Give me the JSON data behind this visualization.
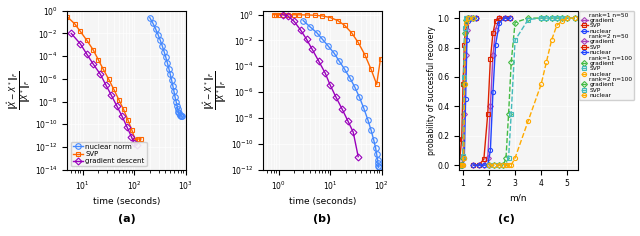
{
  "fig_width": 6.4,
  "fig_height": 2.36,
  "dpi": 100,
  "panel_a": {
    "xlabel": "time (seconds)",
    "ylabel": "$\\frac{\\|\\hat{X}-X^*\\|_F}{\\|X^*\\|_F}$",
    "label": "(a)",
    "xlim_log": [
      0.7,
      3.0
    ],
    "ylim": [
      1e-14,
      1
    ],
    "nuclear_color": "#4488FF",
    "svp_color": "#FF6600",
    "gradient_color": "#9900BB",
    "nuclear_x": [
      200,
      230,
      260,
      290,
      320,
      350,
      380,
      410,
      440,
      470,
      500,
      530,
      560,
      590,
      620,
      650,
      680,
      700,
      720,
      740,
      760,
      780,
      800,
      820,
      840
    ],
    "nuclear_y": [
      0.25,
      0.08,
      0.025,
      0.008,
      0.0025,
      0.0008,
      0.00025,
      8e-05,
      2.5e-05,
      8e-06,
      2.5e-06,
      8e-07,
      2.5e-07,
      8e-08,
      2.5e-08,
      1e-08,
      4e-09,
      2e-09,
      1.2e-09,
      9e-10,
      7e-10,
      6e-10,
      5.5e-10,
      5e-10,
      5e-10
    ],
    "svp_x": [
      5,
      7,
      9,
      12,
      16,
      20,
      25,
      32,
      40,
      50,
      62,
      75,
      90,
      105,
      120,
      135
    ],
    "svp_y": [
      0.3,
      0.07,
      0.015,
      0.0025,
      0.00035,
      5e-05,
      7e-06,
      9e-07,
      1.2e-07,
      1.5e-08,
      2e-09,
      2.5e-10,
      3e-11,
      4e-12,
      5e-12,
      5e-12
    ],
    "gradient_x": [
      6,
      9,
      12,
      16,
      22,
      28,
      36,
      46,
      58,
      72,
      88,
      100,
      112
    ],
    "gradient_y": [
      0.01,
      0.0012,
      0.00015,
      2e-05,
      2.5e-06,
      3e-07,
      3.5e-08,
      4e-09,
      5e-10,
      6e-11,
      8e-12,
      2e-12,
      1.5e-12
    ]
  },
  "panel_b": {
    "xlabel": "time (seconds)",
    "ylabel": "$\\frac{\\|\\hat{X}-X^*\\|_F}{\\|X^*\\|_F}$",
    "label": "(b)",
    "xlim_log": [
      -0.3,
      2.0
    ],
    "ylim": [
      1e-12,
      2
    ],
    "nuclear_color": "#4488FF",
    "svp_color": "#FF6600",
    "gradient_color": "#9900BB",
    "nuclear_x": [
      3,
      4,
      5.5,
      7,
      9,
      12,
      15,
      19,
      24,
      30,
      37,
      45,
      54,
      62,
      70,
      76,
      80,
      83,
      85,
      86,
      87
    ],
    "nuclear_y": [
      0.35,
      0.12,
      0.04,
      0.013,
      0.004,
      0.001,
      0.00025,
      6e-05,
      1.3e-05,
      2.5e-06,
      4e-07,
      5.5e-08,
      7e-09,
      1.2e-09,
      2e-10,
      5e-11,
      1.5e-11,
      6e-12,
      3e-12,
      2e-12,
      1.5e-12
    ],
    "svp_x": [
      0.8,
      0.9,
      1.0,
      1.2,
      1.5,
      2.0,
      2.5,
      3.5,
      5,
      7,
      10,
      14,
      19,
      26,
      35,
      47,
      62,
      80,
      95
    ],
    "svp_y": [
      1.0,
      1.0,
      1.0,
      1.0,
      0.99,
      0.98,
      0.97,
      0.95,
      0.9,
      0.8,
      0.6,
      0.35,
      0.15,
      0.04,
      0.007,
      0.0008,
      6e-05,
      4e-06,
      0.0004
    ],
    "gradient_x": [
      1.2,
      1.5,
      2.0,
      2.7,
      3.5,
      4.5,
      6,
      8,
      10,
      13,
      17,
      22,
      28,
      35
    ],
    "gradient_y": [
      1.0,
      0.8,
      0.3,
      0.06,
      0.012,
      0.002,
      0.00025,
      3e-05,
      3.5e-06,
      4e-07,
      5e-08,
      6e-09,
      8e-10,
      1e-11
    ]
  },
  "panel_c": {
    "xlabel": "m/n",
    "ylabel": "probability of successful recovery",
    "label": "(c)",
    "xlim": [
      0.85,
      5.4
    ],
    "ylim": [
      -0.03,
      1.05
    ],
    "rank1_n50_grad_color": "#AA44BB",
    "rank1_n50_svp_color": "#DD2200",
    "rank1_n50_nuc_color": "#2244FF",
    "rank2_n50_grad_color": "#AA44BB",
    "rank2_n50_svp_color": "#DD2200",
    "rank2_n50_nuc_color": "#2244FF",
    "rank1_n100_grad_color": "#44BB44",
    "rank1_n100_svp_color": "#44BBBB",
    "rank1_n100_nuc_color": "#FFAA00",
    "rank2_n100_grad_color": "#44BB44",
    "rank2_n100_svp_color": "#44BBBB",
    "rank2_n100_nuc_color": "#FFAA00",
    "rank1_n50_x": [
      0.85,
      0.95,
      1.0,
      1.05,
      1.1,
      1.15,
      1.2,
      1.3,
      1.5
    ],
    "rank1_n50_grad_y": [
      0.0,
      0.0,
      0.05,
      0.35,
      0.75,
      0.92,
      1.0,
      1.0,
      1.0
    ],
    "rank1_n50_svp_y": [
      0.0,
      0.18,
      0.55,
      0.82,
      0.95,
      1.0,
      1.0,
      1.0,
      1.0
    ],
    "rank1_n50_nuc_y": [
      0.0,
      0.0,
      0.0,
      0.05,
      0.45,
      0.85,
      0.98,
      1.0,
      1.0
    ],
    "rank2_n50_x": [
      1.4,
      1.6,
      1.8,
      1.95,
      2.05,
      2.15,
      2.25,
      2.4,
      2.6,
      2.8
    ],
    "rank2_n50_grad_y": [
      0.0,
      0.0,
      0.0,
      0.05,
      0.4,
      0.75,
      0.92,
      1.0,
      1.0,
      1.0
    ],
    "rank2_n50_svp_y": [
      0.0,
      0.0,
      0.04,
      0.35,
      0.72,
      0.9,
      0.98,
      1.0,
      1.0,
      1.0
    ],
    "rank2_n50_nuc_y": [
      0.0,
      0.0,
      0.0,
      0.0,
      0.1,
      0.5,
      0.82,
      0.97,
      1.0,
      1.0
    ],
    "rank1_n100_x": [
      0.85,
      0.92,
      0.97,
      1.0,
      1.03,
      1.06,
      1.1,
      1.2,
      1.4
    ],
    "rank1_n100_grad_y": [
      0.0,
      0.0,
      0.0,
      0.05,
      0.55,
      0.9,
      0.99,
      1.0,
      1.0
    ],
    "rank1_n100_svp_y": [
      0.0,
      0.0,
      0.0,
      0.06,
      0.6,
      0.93,
      1.0,
      1.0,
      1.0
    ],
    "rank1_n100_nuc_y": [
      0.0,
      0.0,
      0.0,
      0.0,
      0.05,
      0.55,
      0.97,
      1.0,
      1.0
    ],
    "rank2_n100_x": [
      2.0,
      2.2,
      2.4,
      2.55,
      2.65,
      2.75,
      2.85,
      3.0,
      3.5,
      4.0,
      4.2,
      4.4,
      4.6,
      4.8,
      5.0,
      5.3
    ],
    "rank2_n100_grad_y": [
      0.0,
      0.0,
      0.0,
      0.0,
      0.05,
      0.35,
      0.7,
      0.97,
      1.0,
      1.0,
      1.0,
      1.0,
      1.0,
      1.0,
      1.0,
      1.0
    ],
    "rank2_n100_svp_y": [
      0.0,
      0.0,
      0.0,
      0.0,
      0.0,
      0.05,
      0.35,
      0.85,
      0.99,
      1.0,
      1.0,
      1.0,
      1.0,
      1.0,
      1.0,
      1.0
    ],
    "rank2_n100_nuc_y": [
      0.0,
      0.0,
      0.0,
      0.0,
      0.0,
      0.0,
      0.0,
      0.05,
      0.3,
      0.55,
      0.7,
      0.85,
      0.95,
      0.98,
      1.0,
      1.0
    ]
  }
}
